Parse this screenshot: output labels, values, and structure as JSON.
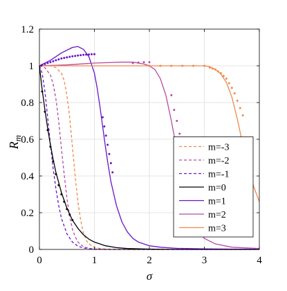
{
  "chart_data": {
    "type": "line",
    "xlabel": "σ",
    "ylabel_base": "R",
    "ylabel_sub": "m",
    "xlim": [
      0,
      4
    ],
    "ylim": [
      0,
      1.2
    ],
    "xticks": [
      0,
      1,
      2,
      3,
      4
    ],
    "xtick_labels": [
      "0",
      "1",
      "2",
      "3",
      "4"
    ],
    "yticks": [
      0,
      0.2,
      0.4,
      0.6,
      0.8,
      1,
      1.2
    ],
    "ytick_labels": [
      "0",
      "0.2",
      "0.4",
      "0.6",
      "0.8",
      "1",
      "1.2"
    ],
    "grid": true,
    "legend_position": "right",
    "series": [
      {
        "name": "m=-3",
        "color": "#f0884a",
        "dash": true,
        "x": [
          0,
          0.1,
          0.2,
          0.3,
          0.4,
          0.45,
          0.5,
          0.55,
          0.6,
          0.65,
          0.7,
          0.75,
          0.8,
          0.85,
          0.9,
          1.0,
          1.1,
          1.2,
          1.4,
          1.6,
          2.0,
          3.0,
          4.0
        ],
        "y": [
          1.0,
          1.0,
          1.0,
          0.99,
          0.96,
          0.92,
          0.84,
          0.72,
          0.56,
          0.4,
          0.26,
          0.16,
          0.09,
          0.05,
          0.03,
          0.012,
          0.005,
          0.002,
          0.0,
          0.0,
          0.0,
          0.0,
          0.0
        ]
      },
      {
        "name": "m=-2",
        "color": "#b54aa0",
        "dash": true,
        "x": [
          0,
          0.1,
          0.2,
          0.25,
          0.3,
          0.35,
          0.4,
          0.45,
          0.5,
          0.55,
          0.6,
          0.65,
          0.7,
          0.8,
          0.9,
          1.0,
          1.2,
          1.5,
          2.0,
          3.0,
          4.0
        ],
        "y": [
          1.0,
          0.99,
          0.95,
          0.9,
          0.82,
          0.7,
          0.55,
          0.41,
          0.28,
          0.18,
          0.11,
          0.07,
          0.04,
          0.015,
          0.006,
          0.002,
          0.0,
          0.0,
          0.0,
          0.0,
          0.0
        ]
      },
      {
        "name": "m=-1",
        "color": "#6a12c8",
        "dash": true,
        "x": [
          0,
          0.05,
          0.1,
          0.15,
          0.2,
          0.25,
          0.3,
          0.35,
          0.4,
          0.5,
          0.6,
          0.7,
          0.8,
          0.9,
          1.0,
          1.2,
          1.5,
          2.0,
          3.0,
          4.0
        ],
        "y": [
          1.0,
          0.96,
          0.86,
          0.72,
          0.57,
          0.44,
          0.33,
          0.24,
          0.17,
          0.085,
          0.04,
          0.018,
          0.008,
          0.004,
          0.002,
          0.0,
          0.0,
          0.0,
          0.0,
          0.0
        ]
      },
      {
        "name": "m=0",
        "color": "#000000",
        "dash": false,
        "x": [
          0,
          0.05,
          0.1,
          0.15,
          0.2,
          0.25,
          0.3,
          0.4,
          0.5,
          0.6,
          0.7,
          0.8,
          0.9,
          1.0,
          1.2,
          1.4,
          1.6,
          2.0,
          2.5,
          3.0,
          3.5,
          4.0
        ],
        "y": [
          1.0,
          0.87,
          0.76,
          0.66,
          0.57,
          0.49,
          0.42,
          0.31,
          0.225,
          0.16,
          0.115,
          0.08,
          0.056,
          0.04,
          0.02,
          0.01,
          0.005,
          0.002,
          0.0,
          0.0,
          0.0,
          0.0
        ]
      },
      {
        "name": "m=1",
        "color": "#6a12c8",
        "dash": false,
        "x": [
          0,
          0.2,
          0.4,
          0.6,
          0.7,
          0.8,
          0.9,
          1.0,
          1.05,
          1.1,
          1.15,
          1.2,
          1.25,
          1.3,
          1.4,
          1.5,
          1.6,
          1.7,
          1.8,
          2.0,
          2.2,
          2.5,
          3.0,
          3.5,
          4.0
        ],
        "y": [
          1.0,
          1.03,
          1.07,
          1.1,
          1.105,
          1.09,
          1.05,
          0.96,
          0.88,
          0.78,
          0.67,
          0.56,
          0.46,
          0.37,
          0.24,
          0.15,
          0.095,
          0.06,
          0.04,
          0.02,
          0.012,
          0.006,
          0.003,
          0.002,
          0.002
        ]
      },
      {
        "name": "m=2",
        "color": "#b54aa0",
        "dash": false,
        "x": [
          0,
          0.5,
          1.0,
          1.5,
          1.7,
          1.9,
          2.0,
          2.1,
          2.2,
          2.3,
          2.4,
          2.5,
          2.6,
          2.7,
          2.8,
          2.9,
          3.0,
          3.2,
          3.5,
          4.0
        ],
        "y": [
          1.0,
          1.005,
          1.015,
          1.02,
          1.02,
          1.01,
          1.0,
          0.98,
          0.93,
          0.84,
          0.7,
          0.54,
          0.39,
          0.26,
          0.16,
          0.1,
          0.06,
          0.03,
          0.012,
          0.005
        ]
      },
      {
        "name": "m=3",
        "color": "#f0884a",
        "dash": false,
        "x": [
          0,
          1.0,
          2.0,
          2.8,
          3.0,
          3.1,
          3.2,
          3.3,
          3.4,
          3.5,
          3.6,
          3.7,
          3.8,
          3.9,
          4.0
        ],
        "y": [
          1.0,
          1.0,
          1.0,
          1.0,
          1.0,
          0.995,
          0.98,
          0.955,
          0.91,
          0.83,
          0.71,
          0.57,
          0.44,
          0.34,
          0.26
        ]
      }
    ],
    "dotted_series": [
      {
        "color": "#6a12c8",
        "x": [
          0.05,
          0.1,
          0.15,
          0.2,
          0.25,
          0.3,
          0.35,
          0.4,
          0.45,
          0.5,
          0.55,
          0.6,
          0.65,
          0.7,
          0.75,
          0.8,
          0.85,
          0.9,
          0.95,
          1.0,
          1.15,
          1.18,
          1.21,
          1.24,
          1.27,
          1.3,
          1.33
        ],
        "y": [
          1.005,
          1.01,
          1.015,
          1.02,
          1.025,
          1.03,
          1.035,
          1.04,
          1.043,
          1.046,
          1.049,
          1.052,
          1.054,
          1.056,
          1.058,
          1.06,
          1.061,
          1.062,
          1.063,
          1.063,
          0.72,
          0.67,
          0.62,
          0.57,
          0.52,
          0.47,
          0.42
        ]
      },
      {
        "color": "#b54aa0",
        "x": [
          1.7,
          1.8,
          1.9,
          2.0,
          2.4,
          2.45,
          2.5,
          2.55,
          2.6
        ],
        "y": [
          1.015,
          1.018,
          1.02,
          1.02,
          0.84,
          0.76,
          0.7,
          0.63,
          0.56
        ]
      },
      {
        "color": "#f0884a",
        "x": [
          2.0,
          2.2,
          2.4,
          2.6,
          2.8,
          3.0,
          3.1,
          3.15,
          3.2,
          3.25,
          3.3,
          3.35,
          3.4,
          3.45,
          3.5,
          3.55,
          3.6,
          3.65,
          3.7
        ],
        "y": [
          1.0,
          1.0,
          1.0,
          1.0,
          1.0,
          1.0,
          0.99,
          0.985,
          0.98,
          0.97,
          0.96,
          0.945,
          0.93,
          0.905,
          0.88,
          0.85,
          0.81,
          0.77,
          0.73
        ]
      },
      {
        "color": "#000000",
        "x": [
          0.05,
          0.1,
          0.15,
          0.2,
          0.25,
          0.3,
          0.35,
          0.4,
          0.45,
          0.5,
          0.55,
          0.6
        ],
        "y": [
          0.86,
          0.75,
          0.65,
          0.56,
          0.48,
          0.41,
          0.35,
          0.3,
          0.26,
          0.22,
          0.19,
          0.16
        ]
      }
    ]
  }
}
